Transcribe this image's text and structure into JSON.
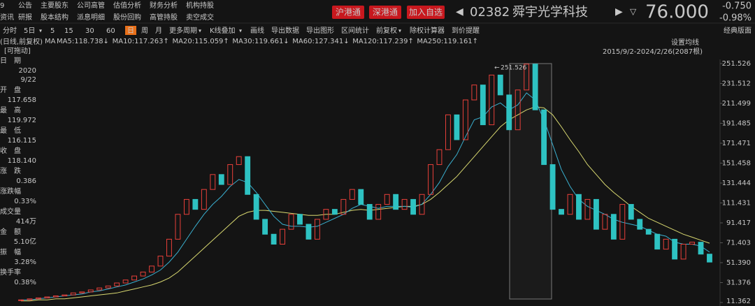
{
  "menu": {
    "row1": [
      "9",
      "公告",
      "主要股东",
      "公司高管",
      "估值分析",
      "财务分析",
      "机构持股"
    ],
    "row2": [
      "资讯",
      "研报",
      "股本结构",
      "派息明细",
      "股份回购",
      "高管持股",
      "卖空成交"
    ]
  },
  "header": {
    "buttons": [
      "沪港通",
      "深港通",
      "加入自选"
    ],
    "code": "02382",
    "name": "舜宇光学科技",
    "price": "76.000",
    "change": "-0.750",
    "change_pct": "-0.98%"
  },
  "toolbar": {
    "items": [
      "分时",
      "5日",
      "5",
      "15",
      "30",
      "60",
      "日",
      "周",
      "月",
      "更多周期",
      "K线叠加",
      "画线",
      "导出数据",
      "导出图形",
      "区间统计",
      "前复权",
      "除权计算器",
      "到价提醒"
    ],
    "active_index": 6,
    "highlight_index": 14,
    "dropdown_indices": [
      1,
      9,
      10,
      15
    ],
    "right": "经典版面"
  },
  "ma_legend": {
    "prefix": "MA",
    "items": [
      {
        "text": "MA5:118.738↓",
        "color": "#e8e8e8"
      },
      {
        "text": "MA10:117.263↑",
        "color": "#e6c84a"
      },
      {
        "text": "MA20:115.059↑",
        "color": "#d050d0"
      },
      {
        "text": "MA30:119.661↓",
        "color": "#4ac84a"
      },
      {
        "text": "MA60:127.341↓",
        "color": "#cfcfcf"
      },
      {
        "text": "MA120:117.239↑",
        "color": "#3ab0d0"
      },
      {
        "text": "MA250:119.161↑",
        "color": "#d8d870"
      }
    ]
  },
  "info_panel": {
    "mode": "(日线,前复权)",
    "drag": "[可拖动]",
    "rows": [
      {
        "label": "日　期",
        "values": [
          "2020",
          "9/22"
        ],
        "color": "#d0d0d0"
      },
      {
        "label": "开　盘",
        "values": [
          "117.658"
        ],
        "color": "#2ec25a"
      },
      {
        "label": "最　高",
        "values": [
          "119.972"
        ],
        "color": "#e8403a"
      },
      {
        "label": "最　低",
        "values": [
          "116.115"
        ],
        "color": "#2ec25a"
      },
      {
        "label": "收　盘",
        "values": [
          "118.140"
        ],
        "color": "#e8403a"
      },
      {
        "label": "涨　跌",
        "values": [
          "0.386"
        ],
        "color": "#e8403a"
      },
      {
        "label": "涨跌幅",
        "values": [
          "0.33%"
        ],
        "color": "#e8403a"
      },
      {
        "label": "成交量",
        "values": [
          "414万"
        ],
        "color": "#d0d0d0"
      },
      {
        "label": "金　额",
        "values": [
          "5.10亿"
        ],
        "color": "#3ab0d0"
      },
      {
        "label": "振　幅",
        "values": [
          "3.28%"
        ],
        "color": "#d0d0d0"
      },
      {
        "label": "换手率",
        "values": [
          "0.38%"
        ],
        "color": "#d0d0d0"
      }
    ]
  },
  "chart_data": {
    "type": "candlestick",
    "settings_label": "设置均线",
    "range_label": "2015/9/2-2024/2/26(2087根)",
    "peak": 251.526,
    "up_color": "#e8403a",
    "down_color": "#2ec2c2",
    "values": [
      14,
      15,
      16,
      17,
      18,
      19,
      21,
      22,
      24,
      26,
      28,
      31,
      34,
      38,
      42,
      48,
      58,
      75,
      100,
      115,
      105,
      125,
      140,
      130,
      150,
      158,
      120,
      95,
      80,
      70,
      85,
      100,
      90,
      75,
      95,
      105,
      100,
      115,
      125,
      110,
      95,
      110,
      120,
      105,
      115,
      100,
      120,
      150,
      165,
      200,
      175,
      215,
      230,
      190,
      240,
      220,
      185,
      225,
      251,
      205,
      150,
      105,
      100,
      120,
      95,
      115,
      85,
      100,
      75,
      110,
      95,
      85,
      80,
      65,
      75,
      55,
      70,
      72,
      60,
      52
    ],
    "lines": [
      {
        "color": "#d8d870",
        "values": [
          13,
          13,
          14,
          14,
          15,
          15,
          16,
          17,
          18,
          19,
          20,
          21,
          23,
          25,
          27,
          29,
          32,
          36,
          42,
          50,
          58,
          66,
          74,
          82,
          90,
          98,
          102,
          104,
          104,
          103,
          102,
          101,
          100,
          99,
          99,
          100,
          100,
          102,
          104,
          105,
          104,
          105,
          106,
          107,
          108,
          108,
          110,
          115,
          122,
          130,
          138,
          148,
          158,
          168,
          178,
          188,
          195,
          200,
          205,
          208,
          207,
          200,
          188,
          175,
          163,
          150,
          140,
          130,
          122,
          115,
          108,
          102,
          96,
          92,
          88,
          84,
          80,
          77,
          74,
          71
        ]
      },
      {
        "color": "#3ab0d0",
        "values": [
          14,
          14,
          15,
          16,
          17,
          18,
          19,
          20,
          22,
          23,
          25,
          27,
          29,
          32,
          35,
          39,
          44,
          52,
          62,
          75,
          88,
          100,
          110,
          118,
          128,
          135,
          132,
          122,
          110,
          98,
          90,
          88,
          88,
          87,
          88,
          92,
          96,
          100,
          106,
          110,
          108,
          106,
          108,
          108,
          108,
          107,
          110,
          120,
          132,
          148,
          160,
          178,
          195,
          198,
          208,
          212,
          205,
          210,
          222,
          215,
          195,
          170,
          145,
          128,
          115,
          108,
          104,
          100,
          95,
          92,
          90,
          88,
          84,
          80,
          78,
          72,
          70,
          70,
          68,
          62
        ]
      }
    ],
    "ylim": [
      11.362,
      251.526
    ],
    "yticks": [
      251.526,
      231.512,
      211.499,
      191.485,
      171.471,
      151.458,
      131.444,
      111.431,
      91.417,
      71.403,
      {
        "value": 51.39,
        "label": "51.390"
      },
      31.376,
      11.362
    ]
  }
}
